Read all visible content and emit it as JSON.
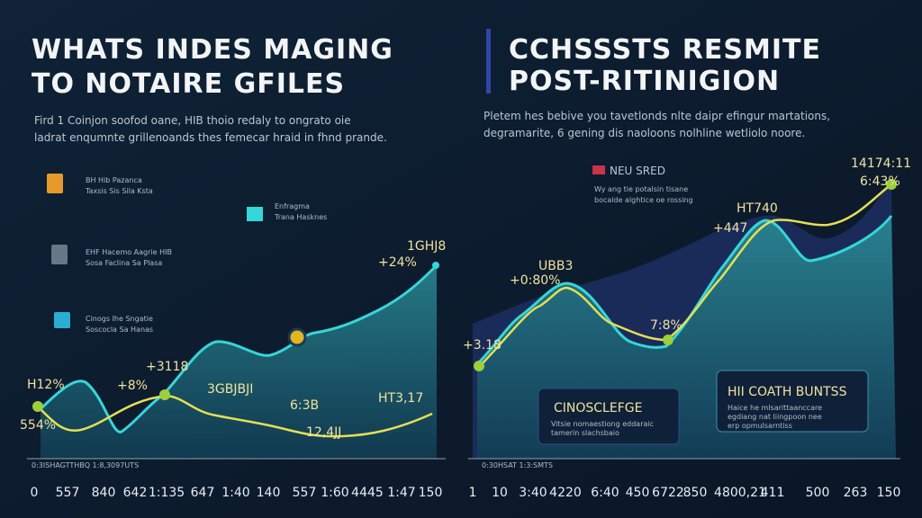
{
  "left": {
    "title": [
      "WHATS INDES MAGING",
      "TO NOTAIRE GFILES"
    ],
    "subtitle": [
      "Fird 1 Coinjon soofod oane, HIB thoio redaly to ongrato oie",
      "ladrat enqumnte grillenoands thes femecar hraid in fhnd prande."
    ],
    "legend": [
      {
        "title": "BH Hib Pazanca",
        "text": "Taxsis Sis Sila Ksta"
      },
      {
        "title": "EHF Hacemo Aagrie HIB",
        "text": "Sosa Faclina Sa Plasa"
      },
      {
        "title": "Cinogs Ihe Sngatie",
        "text": "Soscocla Sa Hanas"
      }
    ],
    "key": {
      "title": "Enfragma",
      "text": "Trana Hasknes"
    },
    "labels": [
      "1GHJ8",
      "+24%",
      "H12%",
      "+8%",
      "+3118",
      "3GBJBJI",
      "6:3B",
      "HT3,17",
      "12,4JJ",
      "554%"
    ],
    "axis_note": "0:3ISHAGTTHBQ        1:8,3097UTS",
    "x_labels": [
      "0",
      "557",
      "840",
      "642",
      "1:135",
      "647",
      "1:40",
      "140",
      "557",
      "1:60",
      "4445",
      "1:47",
      "150"
    ]
  },
  "right": {
    "title": [
      "CCHSSSTS RESMITE",
      "POST-RITINIGION"
    ],
    "subtitle": [
      "Pletem hes bebive you tavetlonds nlte daipr efingur martations,",
      "degramarite, 6 gening dis naoloons nolhline wetliolo noore."
    ],
    "badge": {
      "title": "NEU SRED",
      "text": [
        "Wy ang tie potalsin tisane",
        "bocalde alghtice oe rossing"
      ]
    },
    "labels": [
      "HT740",
      "+447",
      "14174:11",
      "6:43%",
      "UBB3",
      "+0:80%",
      "+3.18",
      "7:8%"
    ],
    "box1": {
      "title": "CINOSCLEFGE",
      "text": [
        "Vitsie nomaestiong eddaraic",
        "tamerin slachsbaio"
      ]
    },
    "box2": {
      "title": "HII COATH BUNTSS",
      "text": [
        "Haice he mlsarittaanccare",
        "egdiang nat liingpoon nee",
        "erp opmulsarntiss"
      ]
    },
    "axis_note": "0:30HSAT 1:3:SMTS",
    "x_labels": [
      "1",
      "10",
      "3:40",
      "4220",
      "6:40",
      "450",
      "6722",
      "850",
      "4800,21",
      "411",
      "500",
      "263",
      "150"
    ]
  }
}
